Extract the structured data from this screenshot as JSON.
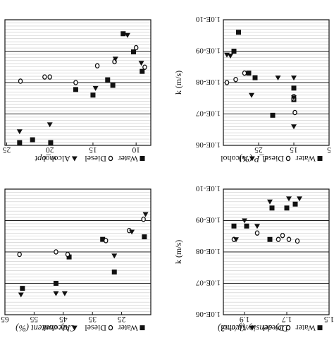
{
  "figure": {
    "note": "Figure is printed upside-down (rotated 180 degrees)"
  },
  "chart_data": [
    {
      "type": "scatter",
      "title": "",
      "xlabel": "w_opt",
      "ylabel": "",
      "xticks": [
        "10",
        "15",
        "20",
        "25"
      ],
      "yticks": [],
      "legend": [
        "Water",
        "Diesel",
        "Alcohol"
      ],
      "legend_placement": "top",
      "grid": true,
      "series": [
        {
          "name": "Water",
          "marker": "square",
          "x": [
            9.3,
            10.3,
            11.5,
            12.7,
            13.3,
            15.0,
            17.0,
            19.9,
            22.0,
            23.5
          ],
          "y": [
            6.7,
            5.3,
            4.0,
            7.7,
            7.3,
            8.4,
            8.0,
            11.8,
            11.6,
            11.8
          ]
        },
        {
          "name": "Diesel",
          "marker": "circle",
          "x": [
            9.0,
            10.0,
            12.5,
            14.5,
            17.0,
            20.0,
            20.6,
            23.4
          ],
          "y": [
            6.4,
            5.0,
            6.0,
            6.3,
            7.5,
            7.1,
            7.1,
            7.4
          ]
        },
        {
          "name": "Alcohol",
          "marker": "triangle",
          "x": [
            9.4,
            11.0,
            12.4,
            14.7,
            20.0,
            23.5
          ],
          "y": [
            6.1,
            4.1,
            5.8,
            7.9,
            10.5,
            11.0
          ]
        }
      ]
    },
    {
      "type": "scatter",
      "title": "",
      "xlabel": "I_P (%)",
      "ylabel": "k (m/s)",
      "xticks": [
        "5",
        "15",
        "25"
      ],
      "yticks": [
        "1.0E-10",
        "1.0E-09",
        "1.0E-08",
        "1.0E-07",
        "1.0E-06"
      ],
      "ylim": [
        "1.0E-06",
        "1.0E-10"
      ],
      "legend": [
        "Water",
        "Diesel",
        "Alcohol"
      ],
      "legend_placement": "top",
      "grid": true,
      "series": [
        {
          "name": "Water",
          "marker": "square",
          "x": [
            15.0,
            15.0,
            21.0,
            26.0,
            27.8,
            30.7,
            32.0
          ],
          "y": [
            1.5e-08,
            3.5e-08,
            1.1e-07,
            7e-09,
            5e-09,
            2.5e-10,
            1e-09
          ]
        },
        {
          "name": "Diesel",
          "marker": "circle",
          "x": [
            15.0,
            15.0,
            14.7,
            29.0,
            31.5,
            34.0
          ],
          "y": [
            2.8e-08,
            3.3e-08,
            9e-08,
            5e-09,
            8e-09,
            1e-08
          ]
        },
        {
          "name": "Alcohol",
          "marker": "triangle",
          "x": [
            15.0,
            15.0,
            15.0,
            19.5,
            27.0,
            33.0,
            34.0
          ],
          "y": [
            2.5e-07,
            3e-08,
            7e-09,
            7e-09,
            2.5e-08,
            1.4e-09,
            1.3e-09
          ]
        }
      ]
    },
    {
      "type": "scatter",
      "title": "",
      "xlabel": "Clay content (%)",
      "ylabel": "",
      "xticks": [
        "25",
        "35",
        "45",
        "55",
        "65"
      ],
      "yticks": [],
      "legend": [
        "Water",
        "Diesel",
        "Alcohol"
      ],
      "legend_placement": "top",
      "grid": true,
      "series": [
        {
          "name": "Water",
          "marker": "square",
          "x": [
            17.2,
            27.5,
            31.5,
            43.0,
            47.5,
            59.0
          ],
          "y": [
            5.8,
            8.6,
            6.0,
            7.4,
            9.5,
            9.9
          ]
        },
        {
          "name": "Diesel",
          "marker": "circle",
          "x": [
            17.5,
            22.4,
            30.4,
            43.5,
            47.5,
            60.0
          ],
          "y": [
            4.4,
            5.3,
            6.1,
            7.2,
            7.0,
            7.2
          ]
        },
        {
          "name": "Alcohol",
          "marker": "triangle",
          "x": [
            16.8,
            21.5,
            27.5,
            44.5,
            47.5,
            59.5
          ],
          "y": [
            4.0,
            5.4,
            7.3,
            10.3,
            10.3,
            10.4
          ]
        }
      ]
    },
    {
      "type": "scatter",
      "title": "",
      "xlabel": "Dry density (g/cm3)",
      "ylabel": "k (m/s)",
      "xticks": [
        "1.5",
        "1.7",
        "1.9"
      ],
      "yticks": [
        "1.0E-10",
        "1.0E-09",
        "1.0E-08",
        "1.0E-07",
        "1.0E-06"
      ],
      "ylim": [
        "1.0E-06",
        "1.0E-10"
      ],
      "legend": [
        "Water",
        "Diesel",
        "Alcohol"
      ],
      "legend_placement": "top",
      "grid": true,
      "series": [
        {
          "name": "Water",
          "marker": "square",
          "x": [
            1.95,
            1.89,
            1.78,
            1.77,
            1.7,
            1.66
          ],
          "y": [
            1.5e-09,
            1.5e-09,
            4e-09,
            4e-10,
            4e-10,
            3e-10
          ]
        },
        {
          "name": "Diesel",
          "marker": "circle",
          "x": [
            1.95,
            1.84,
            1.74,
            1.72,
            1.69,
            1.65
          ],
          "y": [
            4e-09,
            2.5e-09,
            4e-09,
            3e-09,
            4e-09,
            4.5e-09
          ]
        },
        {
          "name": "Alcohol",
          "marker": "triangle",
          "x": [
            1.94,
            1.9,
            1.84,
            1.78,
            1.69,
            1.64
          ],
          "y": [
            4e-09,
            1e-09,
            1.5e-09,
            2.5e-10,
            2e-10,
            2e-10
          ]
        }
      ]
    }
  ]
}
